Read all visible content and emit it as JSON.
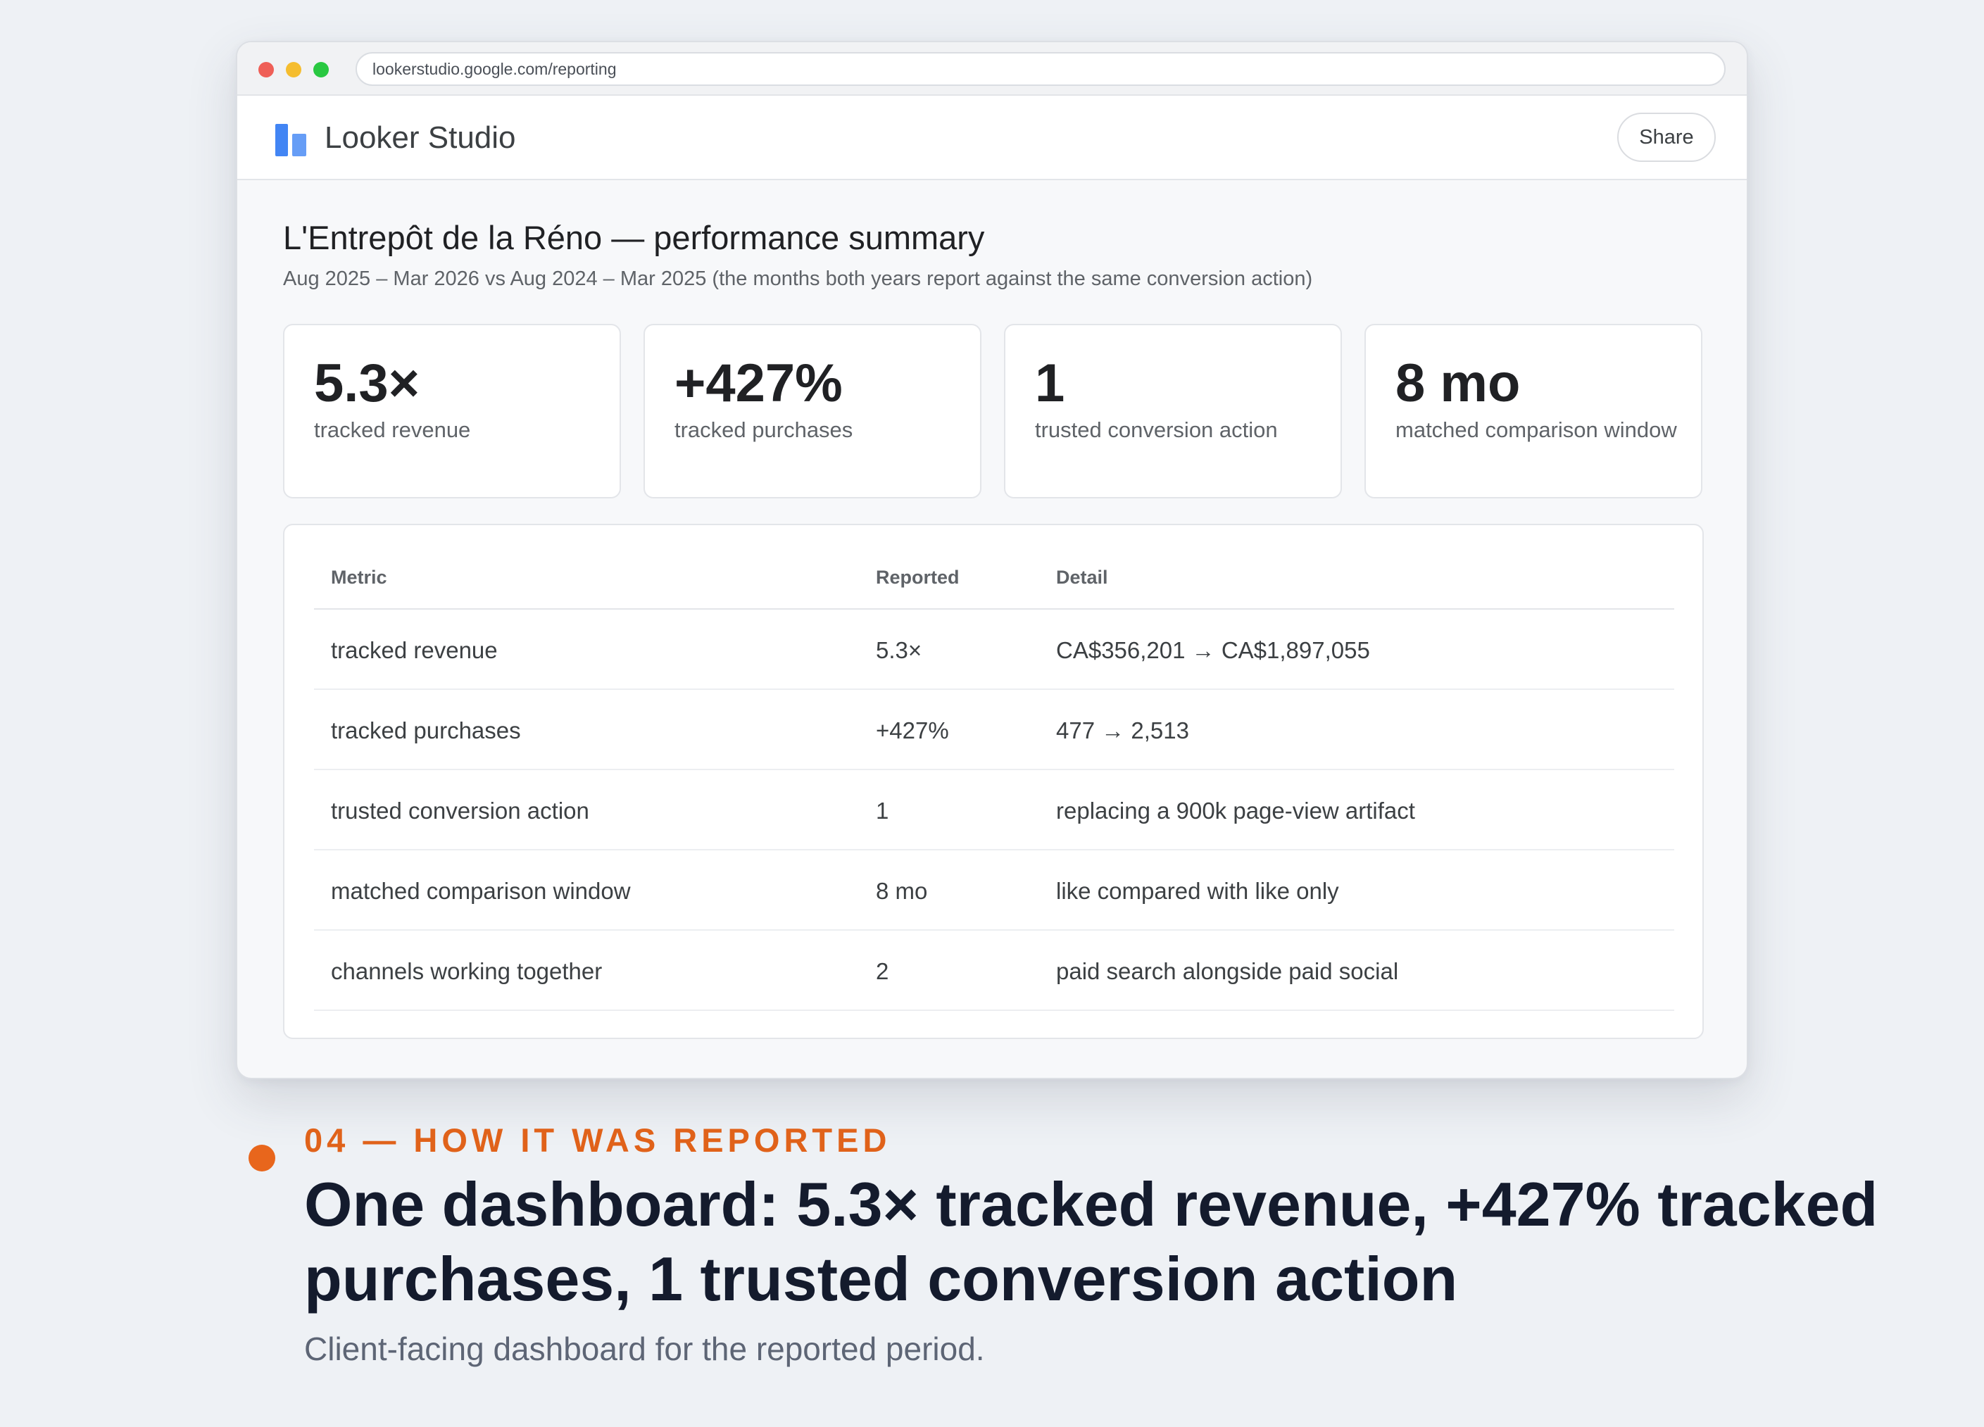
{
  "browser": {
    "url": "lookerstudio.google.com/reporting"
  },
  "app": {
    "name": "Looker Studio",
    "share_label": "Share"
  },
  "report": {
    "title": "L'Entrepôt de la Réno — performance summary",
    "subtitle": "Aug 2025 – Mar 2026 vs Aug 2024 – Mar 2025 (the months both years report against the same conversion action)"
  },
  "kpis": [
    {
      "value": "5.3×",
      "label": "tracked revenue"
    },
    {
      "value": "+427%",
      "label": "tracked purchases"
    },
    {
      "value": "1",
      "label": "trusted conversion action"
    },
    {
      "value": "8 mo",
      "label": "matched comparison window"
    }
  ],
  "table": {
    "headers": [
      "Metric",
      "Reported",
      "Detail"
    ],
    "rows": [
      {
        "metric": "tracked revenue",
        "reported": "5.3×",
        "detail": "CA$356,201 → CA$1,897,055"
      },
      {
        "metric": "tracked purchases",
        "reported": "+427%",
        "detail": "477 → 2,513"
      },
      {
        "metric": "trusted conversion action",
        "reported": "1",
        "detail": "replacing a 900k page-view artifact"
      },
      {
        "metric": "matched comparison window",
        "reported": "8 mo",
        "detail": "like compared with like only"
      },
      {
        "metric": "channels working together",
        "reported": "2",
        "detail": "paid search alongside paid social"
      }
    ]
  },
  "footer": {
    "eyebrow": "04 — HOW IT WAS REPORTED",
    "headline": "One dashboard: 5.3× tracked revenue, +427% tracked purchases, 1 trusted conversion action",
    "caption": "Client-facing dashboard for the reported period."
  },
  "colors": {
    "accent_orange": "#e0621a",
    "looker_blue": "#4285f4",
    "page_background": "#eef1f5"
  }
}
